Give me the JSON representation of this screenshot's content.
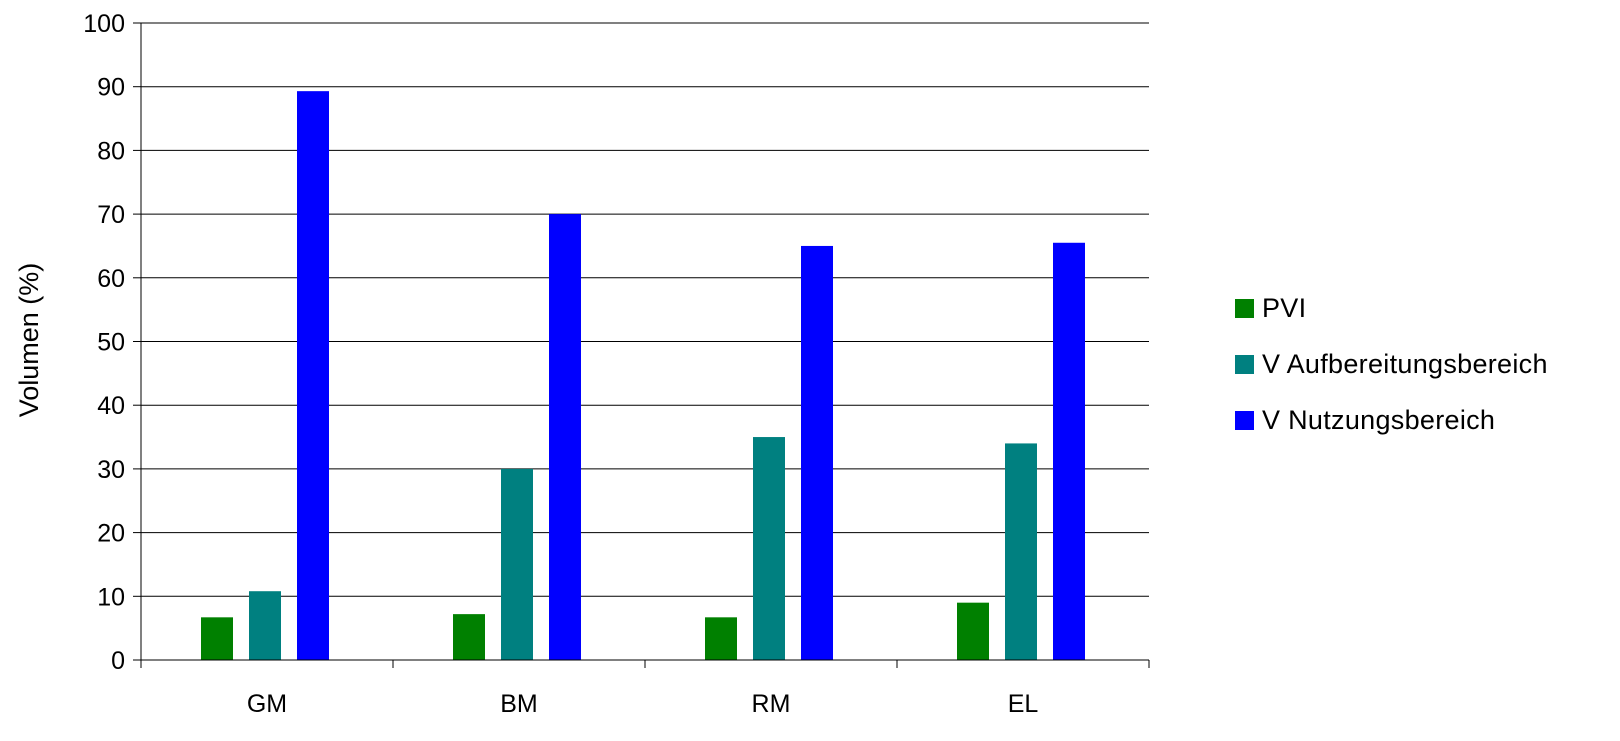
{
  "chart_data": {
    "type": "bar",
    "ylabel": "Volumen (%)",
    "ylim": [
      0,
      100
    ],
    "yticks": [
      0,
      10,
      20,
      30,
      40,
      50,
      60,
      70,
      80,
      90,
      100
    ],
    "categories": [
      "GM",
      "BM",
      "RM",
      "EL"
    ],
    "grid": true,
    "legend_position": "right",
    "series": [
      {
        "name": "PVI",
        "color": "#008000",
        "values": [
          6.7,
          7.2,
          6.7,
          9.0
        ]
      },
      {
        "name": "V Aufbereitungsbereich",
        "color": "#008080",
        "values": [
          10.8,
          30.0,
          35.0,
          34.0
        ]
      },
      {
        "name": "V Nutzungsbereich",
        "color": "#0000ff",
        "values": [
          89.3,
          70.0,
          65.0,
          65.5
        ]
      }
    ]
  }
}
